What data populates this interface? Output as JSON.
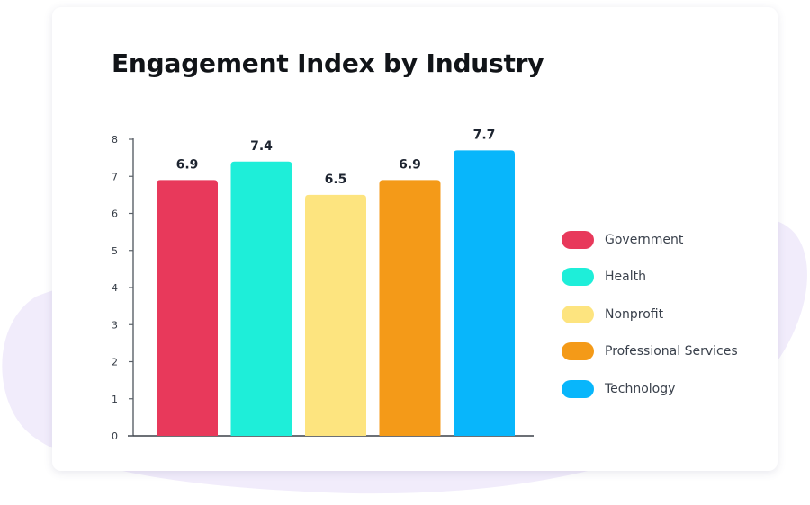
{
  "chart_data": {
    "type": "bar",
    "title": "Engagement Index by Industry",
    "xlabel": "",
    "ylabel": "",
    "ylim": [
      0,
      8
    ],
    "yticks": [
      0,
      1,
      2,
      3,
      4,
      5,
      6,
      7,
      8
    ],
    "categories": [
      "Government",
      "Health",
      "Nonprofit",
      "Professional Services",
      "Technology"
    ],
    "values": [
      6.9,
      7.4,
      6.5,
      6.9,
      7.7
    ],
    "value_labels": [
      "6.9",
      "7.4",
      "6.5",
      "6.9",
      "7.7"
    ],
    "colors": [
      "#e8395b",
      "#1eeed9",
      "#fde47f",
      "#f49a18",
      "#08b6fb"
    ],
    "legend": {
      "position": "right",
      "entries": [
        "Government",
        "Health",
        "Nonprofit",
        "Professional Services",
        "Technology"
      ]
    },
    "grid": false
  }
}
